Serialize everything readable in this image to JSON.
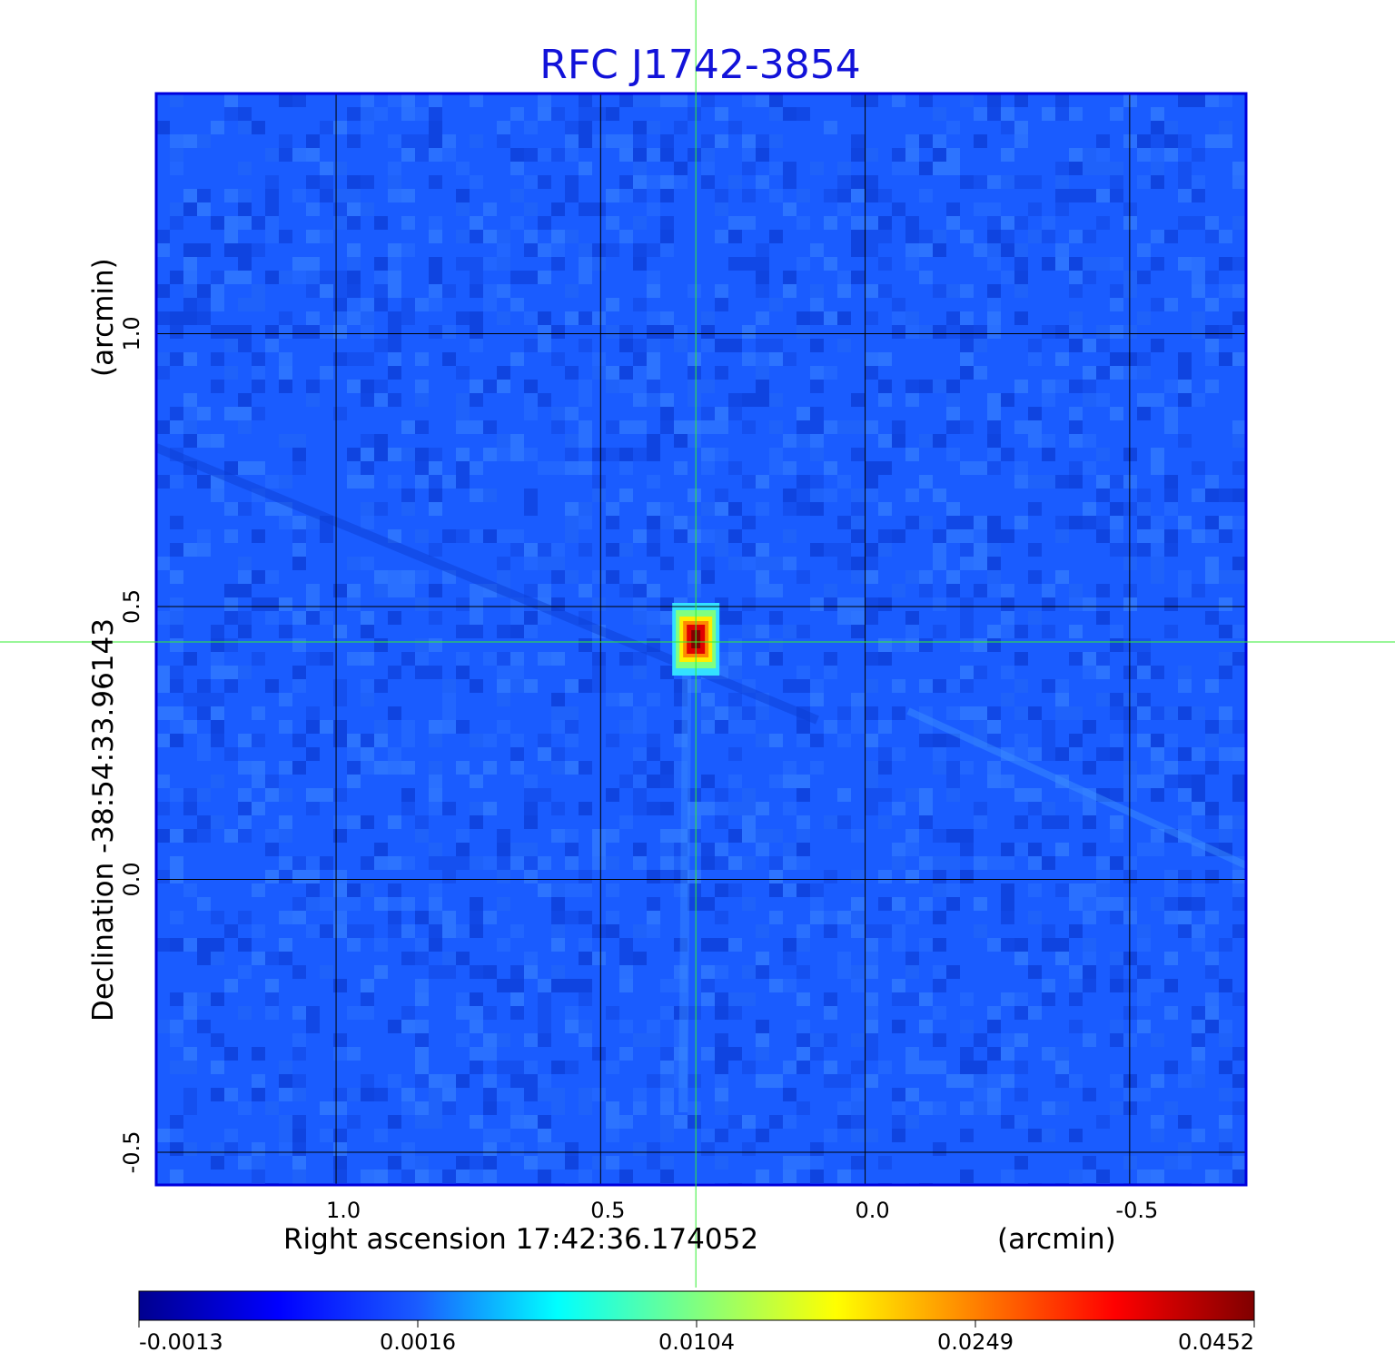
{
  "chart_data": {
    "type": "heatmap",
    "title": "RFC J1742-3854",
    "xlabel": "Right ascension  17:42:36.174052",
    "xunit": "(arcmin)",
    "ylabel": "Declination  -38:54:33.96143",
    "yunit": "(arcmin)",
    "x_axis": {
      "range": [
        1.34,
        -0.72
      ],
      "ticks": [
        1.0,
        0.5,
        0.0,
        -0.5
      ],
      "tick_labels": [
        "1.0",
        "0.5",
        "0.0",
        "-0.5"
      ],
      "reversed": true
    },
    "y_axis": {
      "range": [
        -0.56,
        1.44
      ],
      "ticks": [
        -0.5,
        0.0,
        0.5,
        1.0
      ],
      "tick_labels": [
        "-0.5",
        "0.0",
        "0.5",
        "1.0"
      ]
    },
    "grid": true,
    "grid_color": "#000000",
    "crosshair": {
      "x": 0.32,
      "y": 0.435,
      "color": "#33ee33"
    },
    "source_peak": {
      "x": 0.32,
      "y": 0.44,
      "value": 0.0452
    },
    "colorbar": {
      "colormap": "jet",
      "min": -0.0013,
      "max": 0.0452,
      "tick_labels": [
        "-0.0013",
        "0.0016",
        "0.0104",
        "0.0249",
        "0.0452"
      ]
    },
    "frame_color": "#0000dd",
    "background_color": "#1a5cff"
  }
}
